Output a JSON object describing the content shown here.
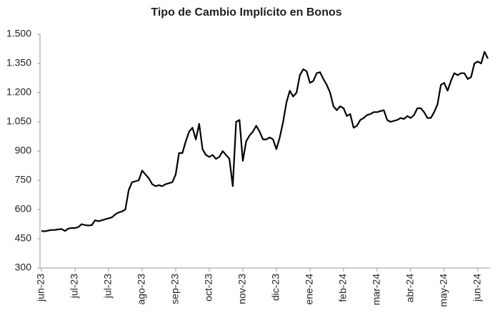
{
  "chart_data": {
    "type": "line",
    "title": "Tipo de Cambio Implícito en Bonos",
    "categories": [
      "jun-23",
      null,
      null,
      null,
      null,
      null,
      null,
      null,
      null,
      null,
      "jul-23",
      null,
      null,
      null,
      null,
      null,
      null,
      null,
      null,
      null,
      "jul-23",
      null,
      null,
      null,
      null,
      null,
      null,
      null,
      null,
      null,
      "ago-23",
      null,
      null,
      null,
      null,
      null,
      null,
      null,
      null,
      null,
      "sep-23",
      null,
      null,
      null,
      null,
      null,
      null,
      null,
      null,
      null,
      "oct-23",
      null,
      null,
      null,
      null,
      null,
      null,
      null,
      null,
      null,
      "nov-23",
      null,
      null,
      null,
      null,
      null,
      null,
      null,
      null,
      null,
      "dic-23",
      null,
      null,
      null,
      null,
      null,
      null,
      null,
      null,
      null,
      "ene-24",
      null,
      null,
      null,
      null,
      null,
      null,
      null,
      null,
      null,
      "feb-24",
      null,
      null,
      null,
      null,
      null,
      null,
      null,
      null,
      null,
      "mar-24",
      null,
      null,
      null,
      null,
      null,
      null,
      null,
      null,
      null,
      "abr-24",
      null,
      null,
      null,
      null,
      null,
      null,
      null,
      null,
      null,
      "may-24",
      null,
      null,
      null,
      null,
      null,
      null,
      null,
      null,
      null,
      "jun-24",
      null,
      null,
      null
    ],
    "values": [
      490,
      488,
      492,
      495,
      495,
      498,
      500,
      490,
      502,
      505,
      505,
      510,
      525,
      520,
      518,
      520,
      545,
      540,
      545,
      550,
      555,
      560,
      575,
      585,
      590,
      600,
      700,
      740,
      745,
      750,
      800,
      780,
      760,
      730,
      720,
      725,
      720,
      730,
      735,
      740,
      780,
      890,
      890,
      950,
      1000,
      1020,
      960,
      1040,
      910,
      880,
      870,
      880,
      860,
      870,
      900,
      880,
      860,
      720,
      1050,
      1060,
      850,
      950,
      980,
      1000,
      1030,
      1000,
      960,
      960,
      970,
      960,
      910,
      970,
      1050,
      1150,
      1210,
      1180,
      1200,
      1290,
      1320,
      1310,
      1250,
      1260,
      1300,
      1305,
      1270,
      1240,
      1200,
      1130,
      1110,
      1130,
      1120,
      1080,
      1090,
      1020,
      1030,
      1060,
      1070,
      1085,
      1090,
      1100,
      1100,
      1105,
      1110,
      1060,
      1050,
      1055,
      1060,
      1070,
      1065,
      1080,
      1070,
      1085,
      1120,
      1120,
      1100,
      1070,
      1070,
      1100,
      1140,
      1240,
      1250,
      1210,
      1260,
      1300,
      1290,
      1300,
      1300,
      1270,
      1280,
      1350,
      1360,
      1350,
      1410,
      1375
    ],
    "color": "#000000",
    "ylim": [
      300,
      1500
    ],
    "yticks": [
      300,
      450,
      600,
      750,
      900,
      {
        "value": 1050,
        "label": "1.050"
      },
      {
        "value": 1200,
        "label": "1.200"
      },
      {
        "value": 1350,
        "label": "1.350"
      },
      {
        "value": 1500,
        "label": "1.500"
      }
    ],
    "grid": false
  }
}
